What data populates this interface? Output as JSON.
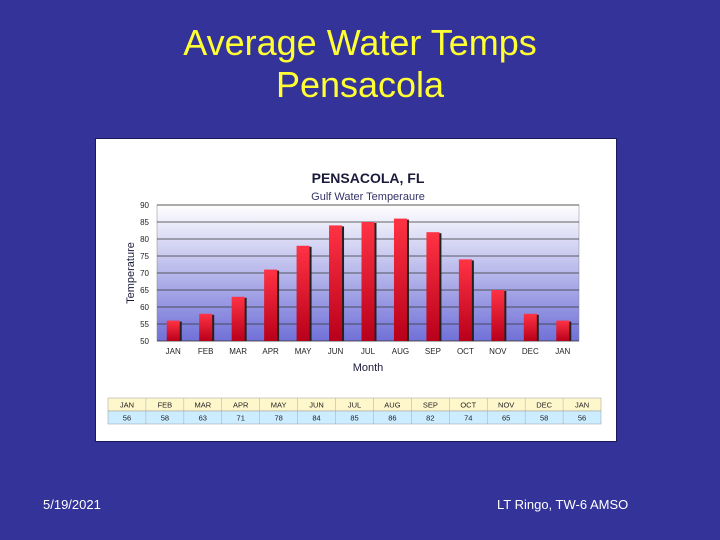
{
  "slide": {
    "title_line1": "Average Water Temps",
    "title_line2": "Pensacola",
    "footer_date": "5/19/2021",
    "footer_credit": "LT Ringo, TW-6 AMSO"
  },
  "colors": {
    "background": "#333399",
    "title": "#ffff33",
    "bar_top": "#ff3344",
    "bar_bottom": "#b8001a",
    "bar_shadow": "#222222",
    "table_header": "#fff7cc",
    "table_values": "#ccecff"
  },
  "chart_data": {
    "type": "bar",
    "title": "PENSACOLA, FL",
    "subtitle": "Gulf Water Temperaure",
    "xlabel": "Month",
    "ylabel": "Temperature",
    "ylim": [
      50,
      90
    ],
    "yticks": [
      50,
      55,
      60,
      65,
      70,
      75,
      80,
      85,
      90
    ],
    "ytick_labels": [
      "50",
      "55",
      "60",
      "65",
      "70",
      "75",
      "80",
      "85",
      "90"
    ],
    "grid": true,
    "categories": [
      "JAN",
      "FEB",
      "MAR",
      "APR",
      "MAY",
      "JUN",
      "JUL",
      "AUG",
      "SEP",
      "OCT",
      "NOV",
      "DEC",
      "JAN"
    ],
    "values": [
      56,
      58,
      63,
      71,
      78,
      84,
      85,
      86,
      82,
      74,
      65,
      58,
      56
    ],
    "table": {
      "months": [
        "JAN",
        "FEB",
        "MAR",
        "APR",
        "MAY",
        "JUN",
        "JUL",
        "AUG",
        "SEP",
        "OCT",
        "NOV",
        "DEC",
        "JAN"
      ],
      "values": [
        "56",
        "58",
        "63",
        "71",
        "78",
        "84",
        "85",
        "86",
        "82",
        "74",
        "65",
        "58",
        "56"
      ]
    }
  }
}
